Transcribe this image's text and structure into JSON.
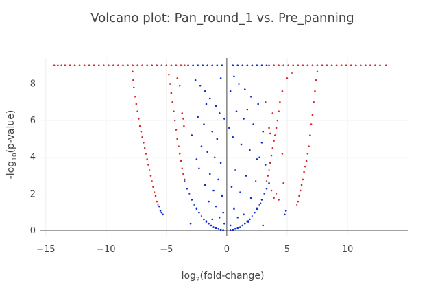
{
  "chart_data": {
    "type": "scatter",
    "title": "Volcano plot: Pan_round_1 vs. Pre_panning",
    "xlabel_parts": [
      "log",
      "2",
      "(fold-change)"
    ],
    "ylabel_parts": [
      "-log",
      "10",
      "(p-value)"
    ],
    "xlim": [
      -15.5,
      15
    ],
    "ylim": [
      -0.3,
      9.4
    ],
    "xticks": [
      -15,
      -10,
      -5,
      0,
      5,
      10
    ],
    "yticks": [
      0,
      2,
      4,
      6,
      8
    ],
    "grid": true,
    "zero_lines": true,
    "series": [
      {
        "color": "#d62728",
        "points": [
          [
            -14.3,
            9
          ],
          [
            -14.0,
            9
          ],
          [
            -13.7,
            9
          ],
          [
            -13.4,
            9
          ],
          [
            -13.0,
            9
          ],
          [
            -12.6,
            9
          ],
          [
            -12.2,
            9
          ],
          [
            -11.8,
            9
          ],
          [
            -11.4,
            9
          ],
          [
            -11.0,
            9
          ],
          [
            -10.6,
            9
          ],
          [
            -10.2,
            9
          ],
          [
            -9.8,
            9
          ],
          [
            -9.4,
            9
          ],
          [
            -9.0,
            9
          ],
          [
            -8.6,
            9
          ],
          [
            -8.2,
            9
          ],
          [
            -7.8,
            9
          ],
          [
            -7.4,
            9
          ],
          [
            -7.0,
            9
          ],
          [
            -6.6,
            9
          ],
          [
            -6.2,
            9
          ],
          [
            -5.8,
            9
          ],
          [
            -5.4,
            9
          ],
          [
            -5.0,
            9
          ],
          [
            -4.6,
            9
          ],
          [
            -4.2,
            9
          ],
          [
            -3.8,
            9
          ],
          [
            -3.5,
            9
          ],
          [
            -7.8,
            8.7
          ],
          [
            -7.75,
            8.2
          ],
          [
            -7.7,
            7.8
          ],
          [
            -7.6,
            7.3
          ],
          [
            -7.5,
            6.9
          ],
          [
            -7.4,
            6.5
          ],
          [
            -7.3,
            6.1
          ],
          [
            -7.2,
            5.7
          ],
          [
            -7.1,
            5.4
          ],
          [
            -7.0,
            5.1
          ],
          [
            -6.9,
            4.8
          ],
          [
            -6.8,
            4.5
          ],
          [
            -6.7,
            4.2
          ],
          [
            -6.6,
            3.9
          ],
          [
            -6.5,
            3.6
          ],
          [
            -6.4,
            3.3
          ],
          [
            -6.3,
            3.0
          ],
          [
            -6.2,
            2.7
          ],
          [
            -6.1,
            2.4
          ],
          [
            -6.0,
            2.1
          ],
          [
            -5.9,
            1.9
          ],
          [
            -5.8,
            1.6
          ],
          [
            -5.7,
            1.4
          ],
          [
            -4.8,
            8.5
          ],
          [
            -4.7,
            8.0
          ],
          [
            -4.6,
            7.5
          ],
          [
            -4.5,
            7.0
          ],
          [
            -4.4,
            6.5
          ],
          [
            -4.3,
            6.0
          ],
          [
            -4.2,
            5.5
          ],
          [
            -4.1,
            5.0
          ],
          [
            -4.0,
            4.6
          ],
          [
            -3.9,
            4.2
          ],
          [
            -3.8,
            3.8
          ],
          [
            -3.7,
            3.4
          ],
          [
            -3.6,
            3.1
          ],
          [
            -3.5,
            2.8
          ],
          [
            -4.1,
            8.3
          ],
          [
            -3.9,
            7.9
          ],
          [
            -3.7,
            6.4
          ],
          [
            -3.6,
            6.1
          ],
          [
            -3.55,
            5.7
          ],
          [
            3.5,
            9
          ],
          [
            3.9,
            9
          ],
          [
            4.3,
            9
          ],
          [
            4.7,
            9
          ],
          [
            5.1,
            9
          ],
          [
            5.5,
            9
          ],
          [
            5.9,
            9
          ],
          [
            6.3,
            9
          ],
          [
            6.7,
            9
          ],
          [
            7.1,
            9
          ],
          [
            7.5,
            9
          ],
          [
            7.9,
            9
          ],
          [
            8.3,
            9
          ],
          [
            8.7,
            9
          ],
          [
            9.1,
            9
          ],
          [
            9.5,
            9
          ],
          [
            9.9,
            9
          ],
          [
            10.3,
            9
          ],
          [
            10.7,
            9
          ],
          [
            11.1,
            9
          ],
          [
            11.5,
            9
          ],
          [
            11.9,
            9
          ],
          [
            12.3,
            9
          ],
          [
            12.7,
            9
          ],
          [
            13.2,
            9
          ],
          [
            7.5,
            8.7
          ],
          [
            7.4,
            8.2
          ],
          [
            7.3,
            7.6
          ],
          [
            7.2,
            7.0
          ],
          [
            7.1,
            6.3
          ],
          [
            7.0,
            5.8
          ],
          [
            6.9,
            5.2
          ],
          [
            6.8,
            4.6
          ],
          [
            6.7,
            4.2
          ],
          [
            6.6,
            3.8
          ],
          [
            6.5,
            3.5
          ],
          [
            6.4,
            3.2
          ],
          [
            6.3,
            2.8
          ],
          [
            6.2,
            2.5
          ],
          [
            6.1,
            2.2
          ],
          [
            6.0,
            1.9
          ],
          [
            5.9,
            1.6
          ],
          [
            5.8,
            1.4
          ],
          [
            5.4,
            8.6
          ],
          [
            5.0,
            8.3
          ],
          [
            4.6,
            7.6
          ],
          [
            4.4,
            7.0
          ],
          [
            4.3,
            6.5
          ],
          [
            4.2,
            6.0
          ],
          [
            4.1,
            5.6
          ],
          [
            4.0,
            5.2
          ],
          [
            3.9,
            4.9
          ],
          [
            3.8,
            4.5
          ],
          [
            3.7,
            4.1
          ],
          [
            3.6,
            3.7
          ],
          [
            3.5,
            3.3
          ],
          [
            3.4,
            3.0
          ],
          [
            3.3,
            2.7
          ],
          [
            3.5,
            5.6
          ],
          [
            3.8,
            6.4
          ],
          [
            4.6,
            4.2
          ],
          [
            3.7,
            2.2
          ],
          [
            3.9,
            1.8
          ],
          [
            4.1,
            2.0
          ],
          [
            4.3,
            1.7
          ],
          [
            3.2,
            7.0
          ],
          [
            3.6,
            5.3
          ],
          [
            4.7,
            2.6
          ]
        ]
      },
      {
        "color": "#0a2bd1",
        "points": [
          [
            -3.2,
            9
          ],
          [
            -2.8,
            9
          ],
          [
            -2.4,
            9
          ],
          [
            -2.0,
            9
          ],
          [
            -1.6,
            9
          ],
          [
            -1.2,
            9
          ],
          [
            -0.8,
            9
          ],
          [
            -0.4,
            9
          ],
          [
            0.5,
            9
          ],
          [
            0.9,
            9
          ],
          [
            1.3,
            9
          ],
          [
            1.7,
            9
          ],
          [
            2.1,
            9
          ],
          [
            2.5,
            9
          ],
          [
            2.9,
            9
          ],
          [
            3.3,
            9
          ],
          [
            -5.6,
            1.3
          ],
          [
            -5.5,
            1.1
          ],
          [
            -5.4,
            1.0
          ],
          [
            -5.3,
            0.9
          ],
          [
            -3.5,
            2.7
          ],
          [
            -3.3,
            2.3
          ],
          [
            -3.1,
            2.0
          ],
          [
            -2.9,
            1.7
          ],
          [
            -2.7,
            1.4
          ],
          [
            -2.5,
            1.2
          ],
          [
            -2.3,
            1.0
          ],
          [
            -2.1,
            0.8
          ],
          [
            -1.9,
            0.6
          ],
          [
            -1.7,
            0.5
          ],
          [
            -1.5,
            0.4
          ],
          [
            -1.3,
            0.3
          ],
          [
            -1.1,
            0.2
          ],
          [
            -0.9,
            0.15
          ],
          [
            -0.7,
            0.1
          ],
          [
            -0.5,
            0.05
          ],
          [
            -0.3,
            0.02
          ],
          [
            0.3,
            0.02
          ],
          [
            0.5,
            0.05
          ],
          [
            0.7,
            0.1
          ],
          [
            0.9,
            0.15
          ],
          [
            1.1,
            0.2
          ],
          [
            1.3,
            0.3
          ],
          [
            1.5,
            0.4
          ],
          [
            1.7,
            0.5
          ],
          [
            1.9,
            0.6
          ],
          [
            2.1,
            0.8
          ],
          [
            2.3,
            1.0
          ],
          [
            2.5,
            1.2
          ],
          [
            2.7,
            1.4
          ],
          [
            2.9,
            1.7
          ],
          [
            3.1,
            2.0
          ],
          [
            3.3,
            2.3
          ],
          [
            3.5,
            2.6
          ],
          [
            -2.6,
            8.2
          ],
          [
            -2.2,
            7.9
          ],
          [
            -1.8,
            7.6
          ],
          [
            -1.4,
            7.2
          ],
          [
            -0.9,
            6.8
          ],
          [
            -0.6,
            6.4
          ],
          [
            -2.4,
            6.2
          ],
          [
            -1.9,
            5.8
          ],
          [
            -1.2,
            5.4
          ],
          [
            -0.8,
            5.0
          ],
          [
            -2.1,
            4.6
          ],
          [
            -1.6,
            4.3
          ],
          [
            -1.0,
            4.0
          ],
          [
            -0.5,
            3.7
          ],
          [
            -2.3,
            3.4
          ],
          [
            -1.4,
            3.1
          ],
          [
            -0.7,
            2.8
          ],
          [
            -1.8,
            2.5
          ],
          [
            -1.1,
            2.2
          ],
          [
            -0.4,
            1.9
          ],
          [
            -1.5,
            1.6
          ],
          [
            -0.9,
            1.3
          ],
          [
            -0.3,
            1.0
          ],
          [
            -0.6,
            0.7
          ],
          [
            -1.2,
            0.6
          ],
          [
            -0.2,
            0.4
          ],
          [
            0.6,
            8.4
          ],
          [
            1.0,
            8.0
          ],
          [
            1.5,
            7.7
          ],
          [
            2.0,
            7.3
          ],
          [
            2.6,
            6.9
          ],
          [
            0.8,
            6.5
          ],
          [
            1.4,
            6.1
          ],
          [
            2.2,
            5.8
          ],
          [
            3.0,
            5.4
          ],
          [
            0.5,
            5.1
          ],
          [
            1.2,
            4.7
          ],
          [
            1.9,
            4.4
          ],
          [
            2.7,
            4.0
          ],
          [
            3.2,
            3.6
          ],
          [
            0.7,
            3.3
          ],
          [
            1.6,
            3.0
          ],
          [
            2.4,
            2.7
          ],
          [
            0.4,
            2.4
          ],
          [
            1.1,
            2.1
          ],
          [
            2.0,
            1.8
          ],
          [
            2.8,
            1.5
          ],
          [
            0.6,
            1.2
          ],
          [
            1.4,
            0.9
          ],
          [
            0.9,
            0.7
          ],
          [
            1.8,
            0.5
          ],
          [
            0.3,
            0.3
          ],
          [
            3.0,
            0.3
          ],
          [
            -3.0,
            0.4
          ],
          [
            4.8,
            0.9
          ],
          [
            4.9,
            1.1
          ],
          [
            -2.5,
            3.9
          ],
          [
            2.5,
            3.9
          ],
          [
            -1.7,
            6.9
          ],
          [
            1.7,
            6.6
          ],
          [
            -0.5,
            8.3
          ],
          [
            0.3,
            7.6
          ],
          [
            -2.9,
            5.2
          ],
          [
            2.9,
            4.8
          ],
          [
            -0.2,
            6.1
          ],
          [
            0.2,
            5.6
          ]
        ]
      }
    ]
  }
}
